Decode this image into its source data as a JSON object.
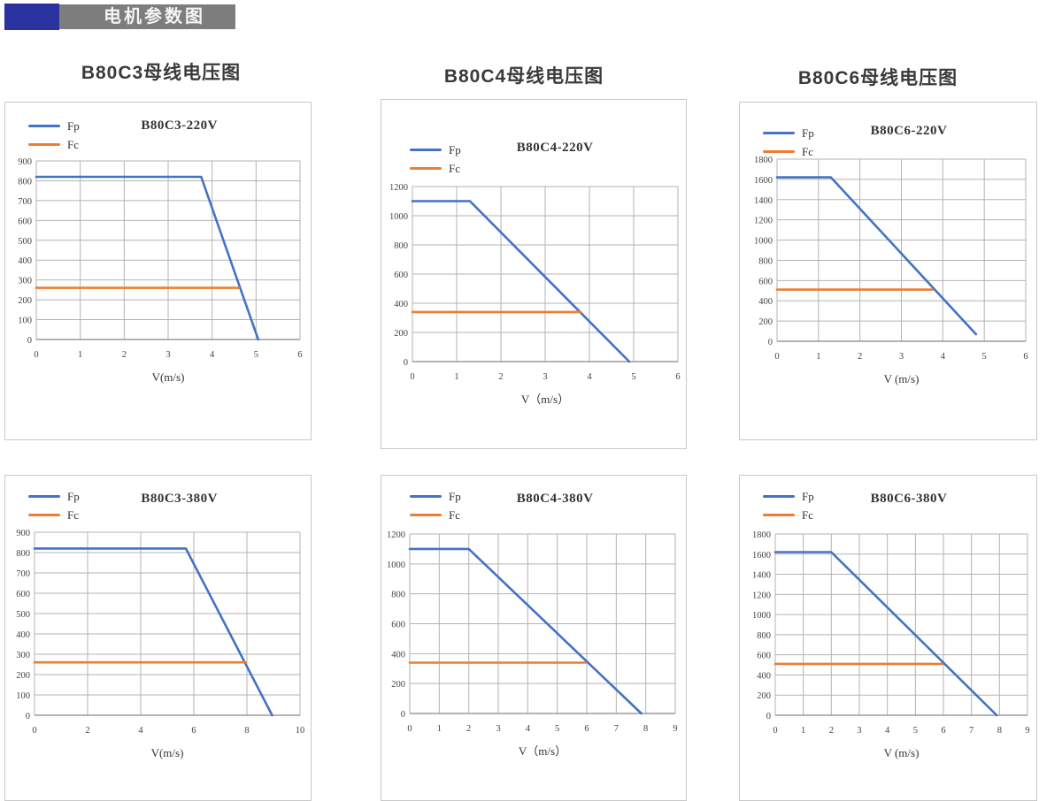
{
  "header": {
    "title": "电机参数图",
    "bar_color": "#7d7d7d",
    "accent_color": "#2a32a0"
  },
  "column_titles": [
    "B80C3母线电压图",
    "B80C4母线电压图",
    "B80C6母线电压图"
  ],
  "colors": {
    "fp": "#4472c4",
    "fc": "#ed7d31",
    "grid": "#b3b3b3",
    "axis": "#9a9a9a"
  },
  "chart_data": [
    {
      "type": "line",
      "title": "B80C3-220V",
      "xlabel": "V(m/s)",
      "xlim": [
        0,
        6
      ],
      "xticks": [
        0,
        1,
        2,
        3,
        4,
        5,
        6
      ],
      "ylim": [
        0,
        900
      ],
      "yticks": [
        0,
        100,
        200,
        300,
        400,
        500,
        600,
        700,
        800,
        900
      ],
      "grid": true,
      "legend_position": "top-left",
      "series": [
        {
          "name": "Fp",
          "color": "fp",
          "points": [
            [
              0,
              820
            ],
            [
              3.75,
              820
            ],
            [
              5.05,
              0
            ]
          ]
        },
        {
          "name": "Fc",
          "color": "fc",
          "points": [
            [
              0,
              260
            ],
            [
              4.6,
              260
            ]
          ]
        }
      ]
    },
    {
      "type": "line",
      "title": "B80C4-220V",
      "xlabel": "V（m/s）",
      "xlim": [
        0,
        6
      ],
      "xticks": [
        0,
        1,
        2,
        3,
        4,
        5,
        6
      ],
      "ylim": [
        0,
        1200
      ],
      "yticks": [
        0,
        200,
        400,
        600,
        800,
        1000,
        1200
      ],
      "grid": true,
      "legend_position": "top-left",
      "series": [
        {
          "name": "Fp",
          "color": "fp",
          "points": [
            [
              0,
              1100
            ],
            [
              1.3,
              1100
            ],
            [
              4.9,
              0
            ]
          ]
        },
        {
          "name": "Fc",
          "color": "fc",
          "points": [
            [
              0,
              340
            ],
            [
              3.8,
              340
            ]
          ]
        }
      ]
    },
    {
      "type": "line",
      "title": "B80C6-220V",
      "xlabel": "V (m/s)",
      "xlim": [
        0,
        6
      ],
      "xticks": [
        0,
        1,
        2,
        3,
        4,
        5,
        6
      ],
      "ylim": [
        0,
        1800
      ],
      "yticks": [
        0,
        200,
        400,
        600,
        800,
        1000,
        1200,
        1400,
        1600,
        1800
      ],
      "grid": true,
      "legend_position": "top-left",
      "series": [
        {
          "name": "Fp",
          "color": "fp",
          "points": [
            [
              0,
              1620
            ],
            [
              1.3,
              1620
            ],
            [
              4.8,
              70
            ]
          ]
        },
        {
          "name": "Fc",
          "color": "fc",
          "points": [
            [
              0,
              510
            ],
            [
              3.75,
              510
            ]
          ]
        }
      ]
    },
    {
      "type": "line",
      "title": "B80C3-380V",
      "xlabel": "V(m/s)",
      "xlim": [
        0,
        10
      ],
      "xticks": [
        0,
        2,
        4,
        6,
        8,
        10
      ],
      "ylim": [
        0,
        900
      ],
      "yticks": [
        0,
        100,
        200,
        300,
        400,
        500,
        600,
        700,
        800,
        900
      ],
      "grid": true,
      "legend_position": "top-left",
      "series": [
        {
          "name": "Fp",
          "color": "fp",
          "points": [
            [
              0,
              820
            ],
            [
              5.7,
              820
            ],
            [
              8.95,
              0
            ]
          ]
        },
        {
          "name": "Fc",
          "color": "fc",
          "points": [
            [
              0,
              260
            ],
            [
              7.95,
              260
            ]
          ]
        }
      ]
    },
    {
      "type": "line",
      "title": "B80C4-380V",
      "xlabel": "V（m/s）",
      "xlim": [
        0,
        9
      ],
      "xticks": [
        0,
        1,
        2,
        3,
        4,
        5,
        6,
        7,
        8,
        9
      ],
      "ylim": [
        0,
        1200
      ],
      "yticks": [
        0,
        200,
        400,
        600,
        800,
        1000,
        1200
      ],
      "grid": true,
      "legend_position": "top-left",
      "series": [
        {
          "name": "Fp",
          "color": "fp",
          "points": [
            [
              0,
              1100
            ],
            [
              2,
              1100
            ],
            [
              7.85,
              0
            ]
          ]
        },
        {
          "name": "Fc",
          "color": "fc",
          "points": [
            [
              0,
              340
            ],
            [
              5.95,
              340
            ]
          ]
        }
      ]
    },
    {
      "type": "line",
      "title": "B80C6-380V",
      "xlabel": "V (m/s)",
      "xlim": [
        0,
        9
      ],
      "xticks": [
        0,
        1,
        2,
        3,
        4,
        5,
        6,
        7,
        8,
        9
      ],
      "ylim": [
        0,
        1800
      ],
      "yticks": [
        0,
        200,
        400,
        600,
        800,
        1000,
        1200,
        1400,
        1600,
        1800
      ],
      "grid": true,
      "legend_position": "top-left",
      "series": [
        {
          "name": "Fp",
          "color": "fp",
          "points": [
            [
              0,
              1620
            ],
            [
              2,
              1620
            ],
            [
              7.9,
              0
            ]
          ]
        },
        {
          "name": "Fc",
          "color": "fc",
          "points": [
            [
              0,
              510
            ],
            [
              5.95,
              510
            ]
          ]
        }
      ]
    }
  ]
}
